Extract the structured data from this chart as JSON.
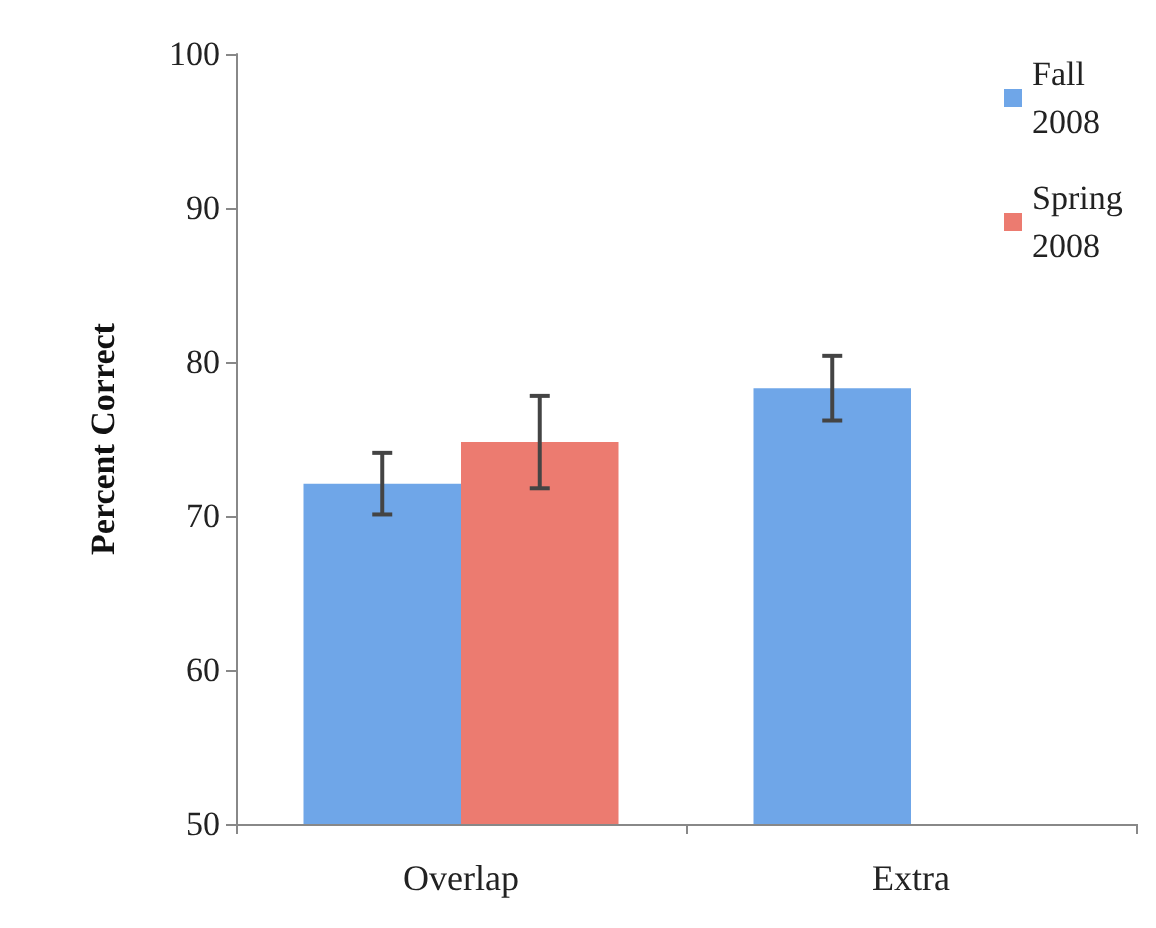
{
  "chart_data": {
    "type": "bar",
    "ylabel": "Percent Correct",
    "categories": [
      "Overlap",
      "Extra"
    ],
    "series": [
      {
        "name": "Fall 2008",
        "color": "#6fa6e8",
        "values": [
          72.1,
          78.3
        ],
        "errors": [
          2,
          2.1
        ]
      },
      {
        "name": "Spring 2008",
        "color": "#ec7b70",
        "values": [
          74.8,
          null
        ],
        "errors": [
          3,
          null
        ]
      }
    ],
    "ylim": [
      50,
      100
    ],
    "yticks": [
      50,
      60,
      70,
      80,
      90,
      100
    ],
    "grid": false,
    "legend": "top right"
  }
}
